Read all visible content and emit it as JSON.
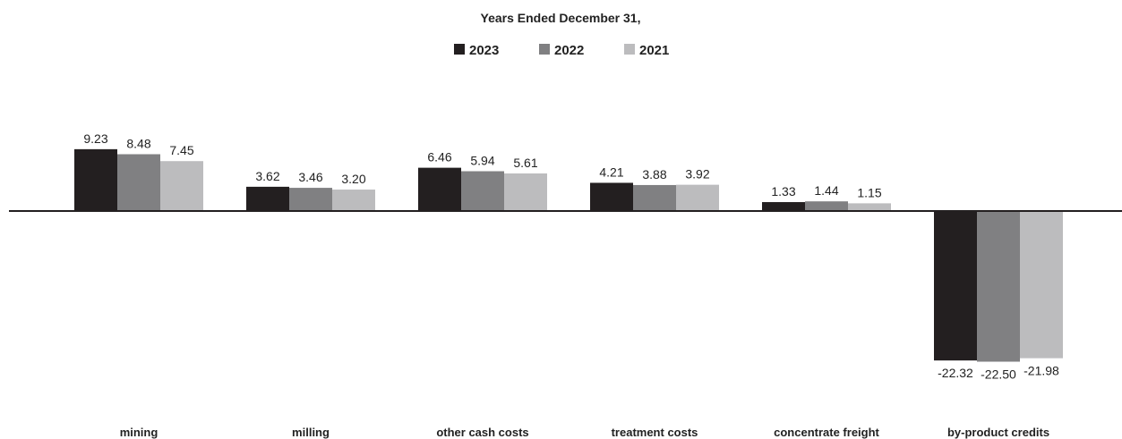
{
  "chart_data": {
    "type": "bar",
    "title": "Years Ended December 31,",
    "categories": [
      "mining",
      "milling",
      "other cash costs",
      "treatment costs",
      "concentrate freight",
      "by-product credits"
    ],
    "series": [
      {
        "name": "2023",
        "color": "#231f20",
        "values": [
          9.23,
          3.62,
          6.46,
          4.21,
          1.33,
          -22.32
        ],
        "labels": [
          "9.23",
          "3.62",
          "6.46",
          "4.21",
          "1.33",
          "-22.32"
        ]
      },
      {
        "name": "2022",
        "color": "#808082",
        "values": [
          8.48,
          3.46,
          5.94,
          3.88,
          1.44,
          -22.5
        ],
        "labels": [
          "8.48",
          "3.46",
          "5.94",
          "3.88",
          "1.44",
          "-22.50"
        ]
      },
      {
        "name": "2021",
        "color": "#bcbcbe",
        "values": [
          7.45,
          3.2,
          5.61,
          3.92,
          1.15,
          -21.98
        ],
        "labels": [
          "7.45",
          "3.20",
          "5.61",
          "3.92",
          "1.15",
          "-21.98"
        ]
      }
    ],
    "legend_position": "top-center",
    "grid": false,
    "zero_line": true
  }
}
